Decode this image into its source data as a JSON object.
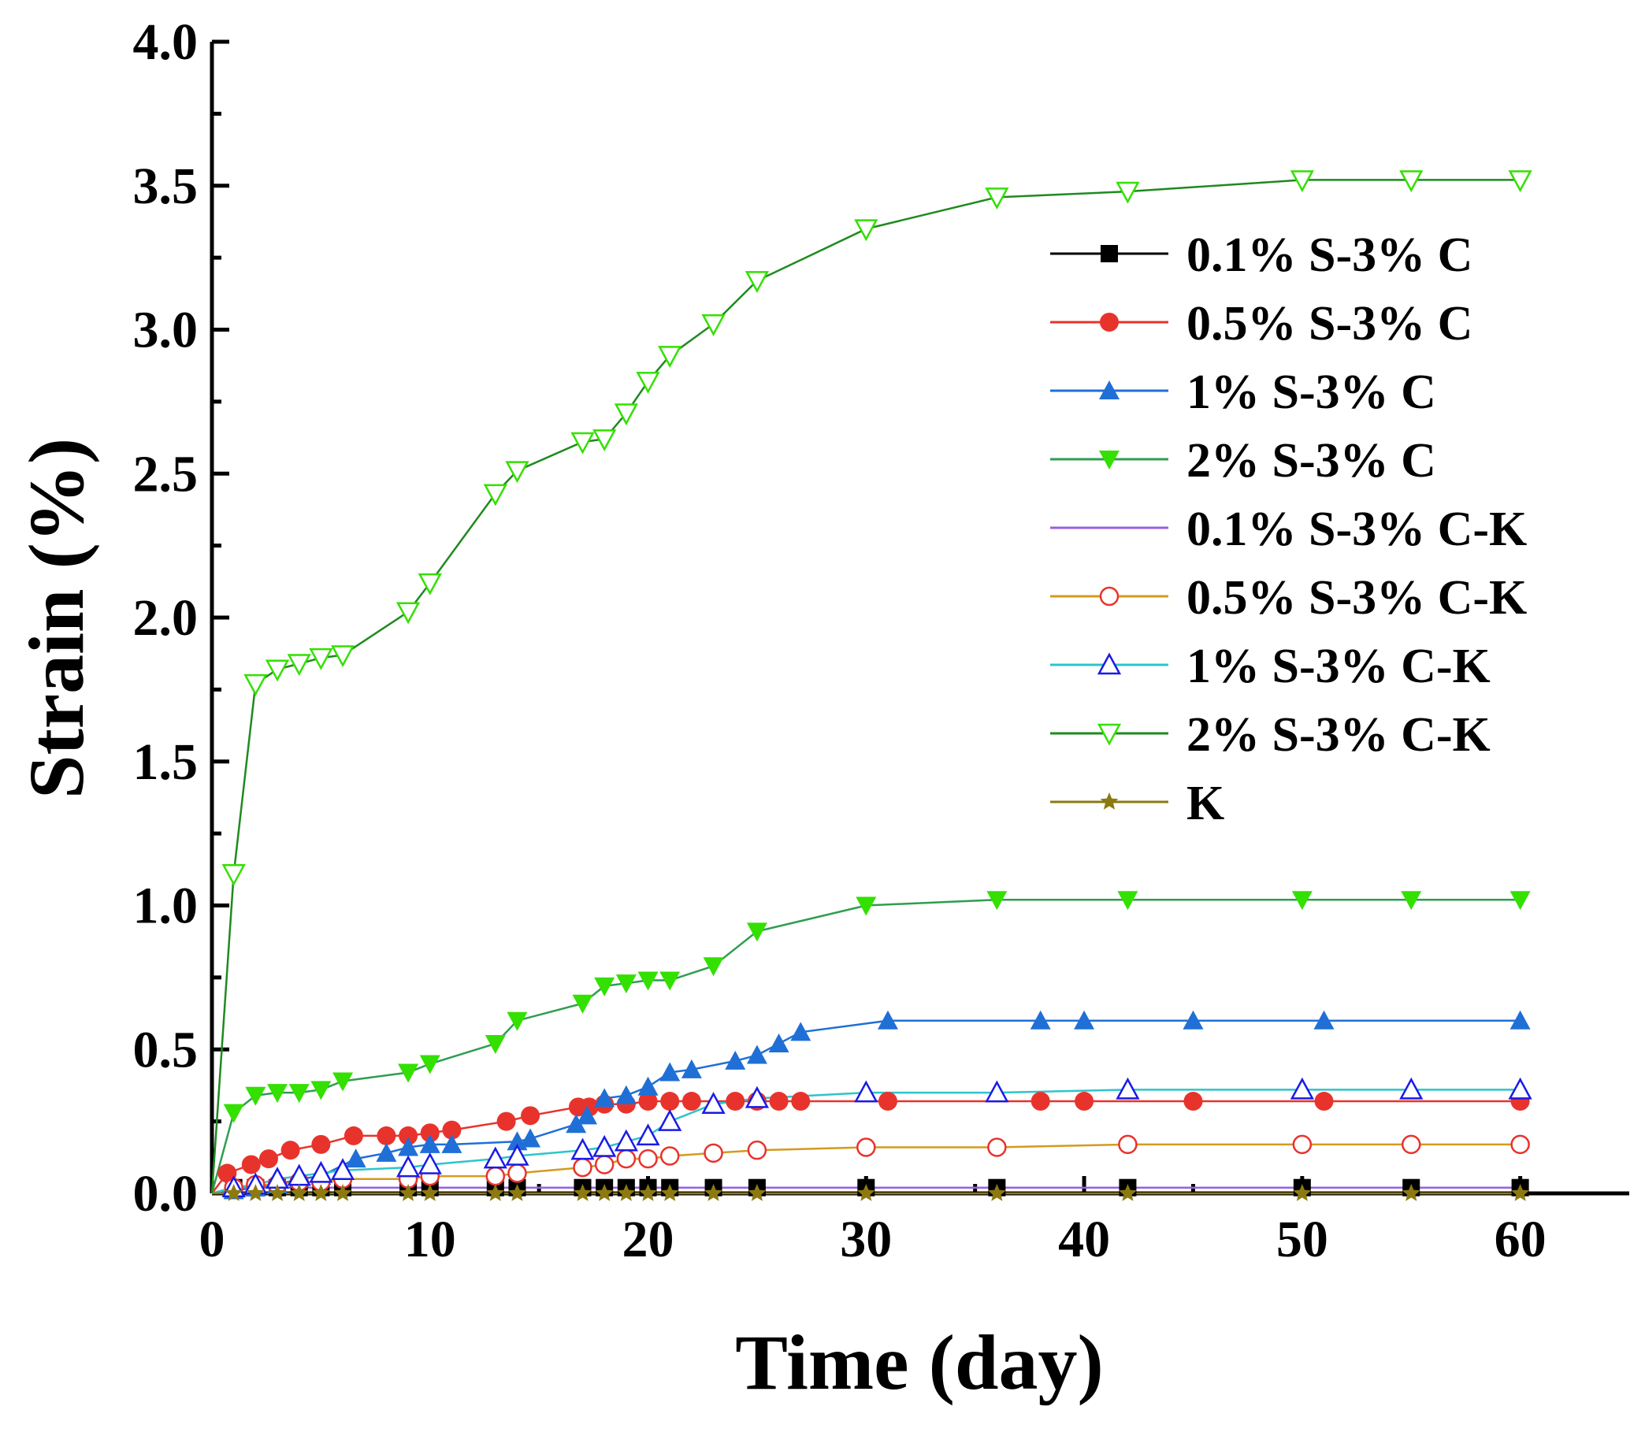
{
  "chart_data": {
    "type": "line",
    "title": "",
    "xlabel": "Time (day)",
    "ylabel": "Strain (%)",
    "xlim": [
      0,
      65
    ],
    "ylim": [
      0,
      4.0
    ],
    "xticks": [
      0,
      10,
      20,
      30,
      40,
      50,
      60
    ],
    "yticks": [
      0.0,
      0.5,
      1.0,
      1.5,
      2.0,
      2.5,
      3.0,
      3.5,
      4.0
    ],
    "xtick_labels": [
      "0",
      "10",
      "20",
      "30",
      "40",
      "50",
      "60"
    ],
    "ytick_labels": [
      "0.0",
      "0.5",
      "1.0",
      "1.5",
      "2.0",
      "2.5",
      "3.0",
      "3.5",
      "4.0"
    ],
    "grid": false,
    "legend_position": "top-right",
    "series": [
      {
        "name": "0.1% S-3% C",
        "line_color": "#000000",
        "marker": "square-filled",
        "marker_color": "#000000",
        "x": [
          0,
          1,
          2,
          3,
          4,
          5,
          6,
          9,
          10,
          13,
          14,
          17,
          18,
          19,
          20,
          21,
          23,
          25,
          30,
          36,
          42,
          50,
          55,
          60
        ],
        "y": [
          0,
          0.02,
          0.02,
          0.02,
          0.02,
          0.02,
          0.02,
          0.02,
          0.02,
          0.02,
          0.02,
          0.02,
          0.02,
          0.02,
          0.02,
          0.02,
          0.02,
          0.02,
          0.02,
          0.02,
          0.02,
          0.02,
          0.02,
          0.02
        ]
      },
      {
        "name": "0.5% S-3% C",
        "line_color": "#e8332c",
        "marker": "circle-filled",
        "marker_color": "#e8332c",
        "x": [
          0,
          0.7,
          1.8,
          2.6,
          3.6,
          5,
          6.5,
          8,
          9,
          10,
          11,
          13.5,
          14.6,
          16.8,
          17.3,
          18,
          19,
          20,
          21,
          22,
          24,
          25,
          26,
          27,
          31,
          38,
          40,
          45,
          51,
          60
        ],
        "y": [
          0,
          0.07,
          0.1,
          0.12,
          0.15,
          0.17,
          0.2,
          0.2,
          0.2,
          0.21,
          0.22,
          0.25,
          0.27,
          0.3,
          0.3,
          0.31,
          0.31,
          0.32,
          0.32,
          0.32,
          0.32,
          0.32,
          0.32,
          0.32,
          0.32,
          0.32,
          0.32,
          0.32,
          0.32,
          0.32
        ]
      },
      {
        "name": "1% S-3% C",
        "line_color": "#1f6fd6",
        "marker": "triangle-up-filled",
        "marker_color": "#1f6fd6",
        "x": [
          0,
          1,
          2,
          3,
          4,
          5,
          6.6,
          8,
          9,
          10,
          11,
          14,
          14.6,
          16.7,
          17.2,
          18,
          19,
          20,
          21,
          22,
          24,
          25,
          26,
          27,
          31,
          38,
          40,
          45,
          51,
          60
        ],
        "y": [
          0,
          0.01,
          0.02,
          0.03,
          0.05,
          0.06,
          0.12,
          0.14,
          0.16,
          0.17,
          0.17,
          0.18,
          0.19,
          0.24,
          0.27,
          0.33,
          0.34,
          0.37,
          0.42,
          0.43,
          0.46,
          0.48,
          0.52,
          0.56,
          0.6,
          0.6,
          0.6,
          0.6,
          0.6,
          0.6
        ]
      },
      {
        "name": "2% S-3% C",
        "line_color": "#2e9e4f",
        "marker": "triangle-down-filled",
        "marker_color": "#33e000",
        "x": [
          0,
          1,
          2,
          3,
          4,
          5,
          6,
          9,
          10,
          13,
          14,
          17,
          18,
          19,
          20,
          21,
          23,
          25,
          30,
          36,
          42,
          50,
          55,
          60
        ],
        "y": [
          0,
          0.28,
          0.34,
          0.35,
          0.35,
          0.36,
          0.39,
          0.42,
          0.45,
          0.52,
          0.6,
          0.66,
          0.72,
          0.73,
          0.74,
          0.74,
          0.79,
          0.91,
          1.0,
          1.02,
          1.02,
          1.02,
          1.02,
          1.02
        ]
      },
      {
        "name": "0.1% S-3% C-K",
        "line_color": "#9b5fe0",
        "marker": "none",
        "marker_color": "#9b5fe0",
        "x": [
          0,
          1,
          2,
          60
        ],
        "y": [
          0,
          0.02,
          0.02,
          0.02
        ]
      },
      {
        "name": "0.5% S-3% C-K",
        "line_color": "#d49a1e",
        "marker": "circle-open",
        "marker_color": "#e8332c",
        "x": [
          0,
          1,
          2,
          3,
          4,
          5,
          6,
          9,
          10,
          13,
          14,
          17,
          18,
          19,
          20,
          21,
          23,
          25,
          30,
          36,
          42,
          50,
          55,
          60
        ],
        "y": [
          0,
          0.02,
          0.03,
          0.03,
          0.04,
          0.04,
          0.05,
          0.05,
          0.06,
          0.06,
          0.07,
          0.09,
          0.1,
          0.12,
          0.12,
          0.13,
          0.14,
          0.15,
          0.16,
          0.16,
          0.17,
          0.17,
          0.17,
          0.17
        ]
      },
      {
        "name": "1% S-3% C-K",
        "line_color": "#2ec4cc",
        "marker": "triangle-up-open",
        "marker_color": "#1a1ae8",
        "x": [
          0,
          1,
          2,
          3,
          4,
          5,
          6,
          9,
          10,
          13,
          14,
          17,
          18,
          19,
          20,
          21,
          23,
          25,
          30,
          36,
          42,
          50,
          55,
          60
        ],
        "y": [
          0,
          0.02,
          0.03,
          0.05,
          0.06,
          0.07,
          0.08,
          0.09,
          0.1,
          0.12,
          0.13,
          0.15,
          0.16,
          0.18,
          0.2,
          0.25,
          0.31,
          0.33,
          0.35,
          0.35,
          0.36,
          0.36,
          0.36,
          0.36
        ]
      },
      {
        "name": "2% S-3% C-K",
        "line_color": "#1f8a1f",
        "marker": "triangle-down-open",
        "marker_color": "#33e000",
        "x": [
          0,
          1,
          2,
          3,
          4,
          5,
          6,
          9,
          10,
          13,
          14,
          17,
          18,
          19,
          20,
          21,
          23,
          25,
          30,
          36,
          42,
          50,
          55,
          60
        ],
        "y": [
          0,
          1.11,
          1.77,
          1.82,
          1.84,
          1.86,
          1.87,
          2.02,
          2.12,
          2.43,
          2.51,
          2.61,
          2.62,
          2.71,
          2.82,
          2.91,
          3.02,
          3.17,
          3.35,
          3.46,
          3.48,
          3.52,
          3.52,
          3.52
        ]
      },
      {
        "name": "K",
        "line_color": "#8c7a10",
        "marker": "star",
        "marker_color": "#8c7a10",
        "x": [
          0,
          1,
          2,
          3,
          4,
          5,
          6,
          9,
          10,
          13,
          14,
          17,
          18,
          19,
          20,
          21,
          23,
          25,
          30,
          36,
          42,
          50,
          55,
          60
        ],
        "y": [
          0,
          0,
          0,
          0,
          0,
          0,
          0,
          0,
          0,
          0,
          0,
          0,
          0,
          0,
          0,
          0,
          0,
          0,
          0,
          0,
          0,
          0,
          0,
          0
        ]
      }
    ]
  }
}
